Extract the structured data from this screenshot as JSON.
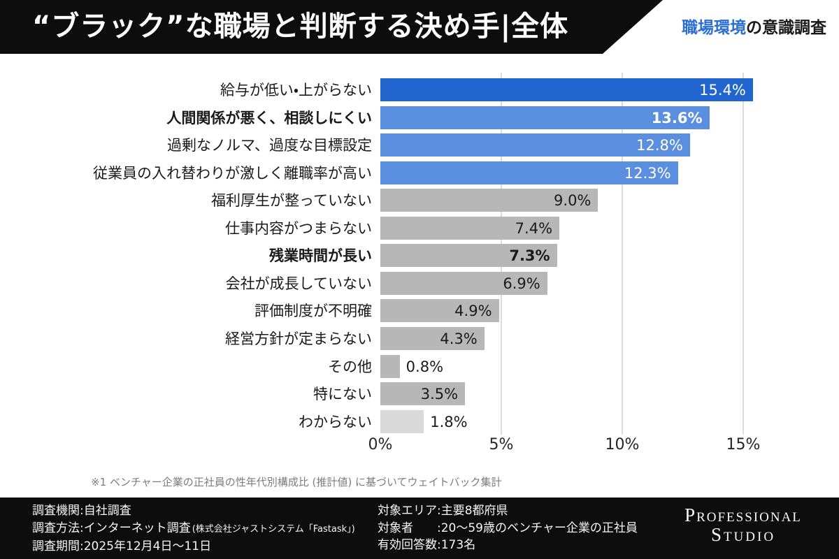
{
  "header": {
    "title": "“ブラック”な職場と判断する決め手|全体",
    "survey_label": {
      "highlight": "職場環境",
      "rest": "の意識調査"
    },
    "accent_blue": "#2b6fd4",
    "background": "#0d0d0d"
  },
  "chart_data": {
    "type": "bar",
    "orientation": "horizontal",
    "title": "“ブラック”な職場と判断する決め手(全体)",
    "categories": [
      "給与が低い・上がらない",
      "人間関係が悪く、相談しにくい",
      "過剰なノルマ、過度な目標設定",
      "従業員の入れ替わりが激しく離職率が高い",
      "福利厚生が整っていない",
      "仕事内容がつまらない",
      "残業時間が長い",
      "会社が成長していない",
      "評価制度が不明確",
      "経営方針が定まらない",
      "その他",
      "特にない",
      "わからない"
    ],
    "values": [
      15.4,
      13.6,
      12.8,
      12.3,
      9.0,
      7.4,
      7.3,
      6.9,
      4.9,
      4.3,
      0.8,
      3.5,
      1.8
    ],
    "value_labels": [
      "15.4%",
      "13.6%",
      "12.8%",
      "12.3%",
      "9.0%",
      "7.4%",
      "7.3%",
      "6.9%",
      "4.9%",
      "4.3%",
      "0.8%",
      "3.5%",
      "1.8%"
    ],
    "emphasized_indices": [
      1,
      6
    ],
    "outside_label_indices": [
      10,
      12
    ],
    "bar_styles": [
      "primary",
      "secondary",
      "secondary",
      "secondary",
      "gray",
      "gray",
      "gray",
      "gray",
      "gray",
      "gray",
      "gray",
      "gray",
      "lightgray"
    ],
    "colors": {
      "primary": "#2166cf",
      "secondary": "#5a8ede",
      "gray": "#b7b7b7",
      "lightgray": "#d9d9d9"
    },
    "xlim": [
      0,
      15.5
    ],
    "x_ticks": [
      {
        "label": "0%",
        "value": 0
      },
      {
        "label": "5%",
        "value": 5
      },
      {
        "label": "10%",
        "value": 10
      },
      {
        "label": "15%",
        "value": 15
      }
    ],
    "grid": true,
    "legend": null
  },
  "footnote": "※1 ベンチャー企業の正社員の性年代別構成比 (推計値) に基づいてウェイトバック集計",
  "footer": {
    "left": [
      {
        "label": "調査機関:",
        "value": "自社調査",
        "note": ""
      },
      {
        "label": "調査方法:",
        "value": "インターネット調査",
        "note": "(株式会社ジャストシステム「Fastask」)"
      },
      {
        "label": "調査期間:",
        "value": "2025年12月4日〜11日",
        "note": ""
      }
    ],
    "mid": [
      {
        "label": "対象エリア:",
        "value": "主要8都府県"
      },
      {
        "label": "対象者　　:",
        "value": "20〜59歳のベンチャー企業の正社員"
      },
      {
        "label": "有効回答数:",
        "value": "173名"
      }
    ],
    "logo": {
      "line1": "Professional",
      "line2": "Studio"
    }
  }
}
